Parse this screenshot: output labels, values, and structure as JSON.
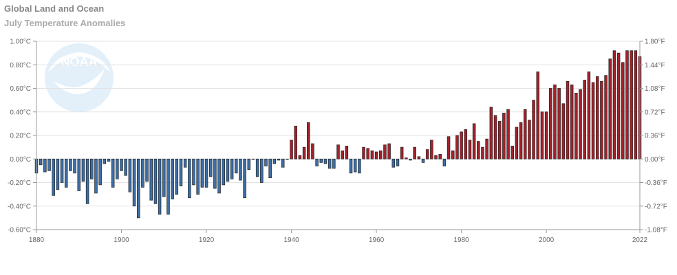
{
  "header": {
    "title": "Global Land and Ocean",
    "subtitle": "July Temperature Anomalies"
  },
  "logo": {
    "text": "NOAA",
    "icon": "noaa-logo"
  },
  "colors": {
    "positive": "#a4212a",
    "negative": "#3c6fa8",
    "border": "#222222",
    "grid": "#e3e3e3"
  },
  "chart_data": {
    "type": "bar",
    "title": "Global Land and Ocean",
    "subtitle": "July Temperature Anomalies",
    "xlim": [
      1880,
      2022
    ],
    "x_ticks": [
      "1880",
      "1900",
      "1920",
      "1940",
      "1960",
      "1980",
      "2000",
      "2022"
    ],
    "ylim_c": [
      -0.6,
      1.0
    ],
    "y_ticks_left": [
      "1.00°C",
      "0.80°C",
      "0.60°C",
      "0.40°C",
      "0.20°C",
      "0.00°C",
      "-0.20°C",
      "-0.40°C",
      "-0.60°C"
    ],
    "y_ticks_right": [
      "1.80°F",
      "1.44°F",
      "1.08°F",
      "0.72°F",
      "0.36°F",
      "0.00°F",
      "-0.36°F",
      "-0.72°F",
      "-1.08°F"
    ],
    "grid": true,
    "start_year": 1880,
    "values": [
      -0.12,
      -0.05,
      -0.11,
      -0.1,
      -0.31,
      -0.26,
      -0.2,
      -0.24,
      -0.1,
      -0.12,
      -0.27,
      -0.19,
      -0.38,
      -0.17,
      -0.29,
      -0.22,
      -0.04,
      -0.02,
      -0.24,
      -0.17,
      -0.1,
      -0.14,
      -0.28,
      -0.4,
      -0.5,
      -0.24,
      -0.19,
      -0.35,
      -0.38,
      -0.47,
      -0.32,
      -0.47,
      -0.34,
      -0.3,
      -0.23,
      -0.07,
      -0.33,
      -0.22,
      -0.3,
      -0.24,
      -0.24,
      -0.15,
      -0.25,
      -0.29,
      -0.22,
      -0.19,
      -0.17,
      -0.12,
      -0.18,
      -0.33,
      -0.09,
      0.0,
      -0.15,
      -0.2,
      -0.06,
      -0.16,
      -0.04,
      -0.01,
      -0.07,
      0.0,
      0.16,
      0.28,
      0.03,
      0.1,
      0.31,
      0.13,
      -0.06,
      -0.03,
      -0.04,
      -0.08,
      -0.08,
      0.12,
      0.07,
      0.11,
      -0.12,
      -0.11,
      -0.12,
      0.1,
      0.09,
      0.07,
      0.06,
      0.07,
      0.12,
      0.13,
      -0.07,
      -0.06,
      0.1,
      0.01,
      -0.01,
      0.1,
      0.02,
      -0.03,
      0.08,
      0.16,
      0.03,
      0.04,
      -0.06,
      0.19,
      0.07,
      0.2,
      0.23,
      0.25,
      0.16,
      0.3,
      0.15,
      0.1,
      0.17,
      0.44,
      0.37,
      0.32,
      0.39,
      0.42,
      0.11,
      0.27,
      0.31,
      0.42,
      0.33,
      0.5,
      0.74,
      0.4,
      0.4,
      0.6,
      0.63,
      0.6,
      0.47,
      0.66,
      0.63,
      0.56,
      0.59,
      0.67,
      0.74,
      0.65,
      0.7,
      0.66,
      0.71,
      0.85,
      0.92,
      0.9,
      0.82,
      0.92,
      0.92,
      0.92,
      0.87
    ]
  }
}
